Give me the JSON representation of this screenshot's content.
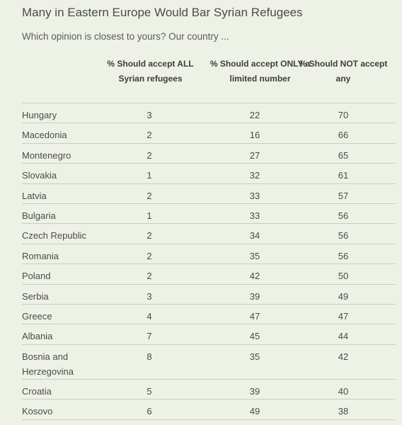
{
  "chart_data": {
    "type": "table",
    "title": "Many in Eastern Europe Would Bar Syrian Refugees",
    "subtitle": "Which opinion is closest to yours? Our country ...",
    "columns": [
      "% Should accept ALL Syrian refugees",
      "% Should accept ONLY a limited number",
      "% Should NOT accept any"
    ],
    "rows": [
      {
        "country": "Hungary",
        "values": [
          3,
          22,
          70
        ]
      },
      {
        "country": "Macedonia",
        "values": [
          2,
          16,
          66
        ]
      },
      {
        "country": "Montenegro",
        "values": [
          2,
          27,
          65
        ]
      },
      {
        "country": "Slovakia",
        "values": [
          1,
          32,
          61
        ]
      },
      {
        "country": "Latvia",
        "values": [
          2,
          33,
          57
        ]
      },
      {
        "country": "Bulgaria",
        "values": [
          1,
          33,
          56
        ]
      },
      {
        "country": "Czech Republic",
        "values": [
          2,
          34,
          56
        ]
      },
      {
        "country": "Romania",
        "values": [
          2,
          35,
          56
        ]
      },
      {
        "country": "Poland",
        "values": [
          2,
          42,
          50
        ]
      },
      {
        "country": "Serbia",
        "values": [
          3,
          39,
          49
        ]
      },
      {
        "country": "Greece",
        "values": [
          4,
          47,
          47
        ]
      },
      {
        "country": "Albania",
        "values": [
          7,
          45,
          44
        ]
      },
      {
        "country": "Bosnia and Herzegovina",
        "values": [
          8,
          35,
          42
        ]
      },
      {
        "country": "Croatia",
        "values": [
          5,
          39,
          40
        ]
      },
      {
        "country": "Kosovo",
        "values": [
          6,
          49,
          38
        ]
      }
    ]
  },
  "colors": {
    "background": "#eef2e6",
    "rule": "#c8cfbd",
    "text": "#4a4a4a"
  }
}
